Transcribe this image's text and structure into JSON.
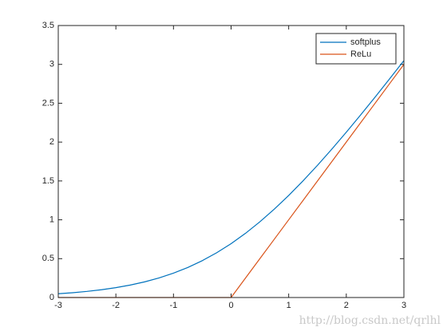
{
  "chart_data": {
    "type": "line",
    "x": [
      -3,
      -2.75,
      -2.5,
      -2.25,
      -2,
      -1.75,
      -1.5,
      -1.25,
      -1,
      -0.75,
      -0.5,
      -0.25,
      0,
      0.25,
      0.5,
      0.75,
      1,
      1.25,
      1.5,
      1.75,
      2,
      2.25,
      2.5,
      2.75,
      3
    ],
    "series": [
      {
        "name": "softplus",
        "color": "#0072bd",
        "values": [
          0.0486,
          0.0619,
          0.0789,
          0.1002,
          0.1269,
          0.1602,
          0.2014,
          0.252,
          0.3133,
          0.3868,
          0.4741,
          0.5759,
          0.6931,
          0.8259,
          0.9741,
          1.1368,
          1.3133,
          1.502,
          1.7014,
          1.9102,
          2.1269,
          2.3502,
          2.5789,
          2.8119,
          3.0486
        ]
      },
      {
        "name": "ReLu",
        "color": "#d95319",
        "values": [
          0,
          0,
          0,
          0,
          0,
          0,
          0,
          0,
          0,
          0,
          0,
          0,
          0,
          0.25,
          0.5,
          0.75,
          1,
          1.25,
          1.5,
          1.75,
          2,
          2.25,
          2.5,
          2.75,
          3
        ]
      }
    ],
    "xlim": [
      -3,
      3
    ],
    "xticks": [
      -3,
      -2,
      -1,
      0,
      1,
      2,
      3
    ],
    "ylim": [
      0,
      3.5
    ],
    "yticks": [
      0,
      0.5,
      1,
      1.5,
      2,
      2.5,
      3,
      3.5
    ],
    "grid": false,
    "legend": "top-right"
  },
  "watermark": "http://blog.csdn.net/qrlhl"
}
